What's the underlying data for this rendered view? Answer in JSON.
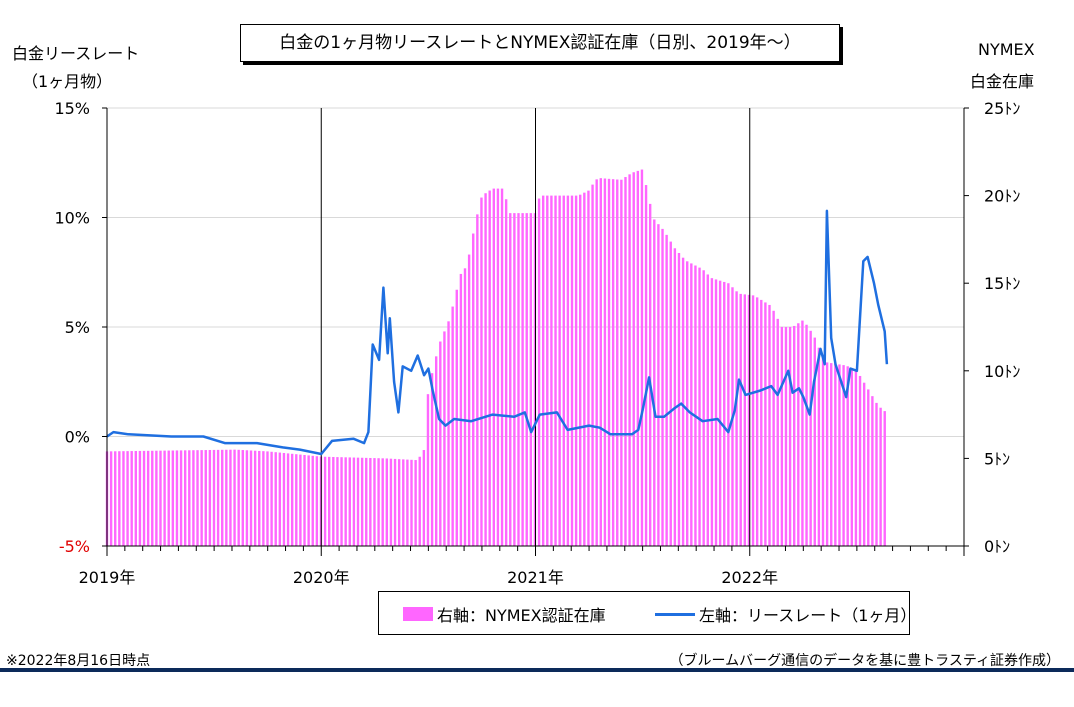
{
  "title": "白金の1ヶ月物リースレートとNYMEX認証在庫（日別、2019年～）",
  "left_axis_title": [
    "白金リースレート",
    "（1ヶ月物）"
  ],
  "right_axis_title": [
    "NYMEX",
    "白金在庫"
  ],
  "legend": {
    "bar": "右軸：NYMEX認証在庫",
    "line": "左軸：リースレート（1ヶ月）"
  },
  "footer_left": "※2022年8月16日時点",
  "footer_right": "（ブルームバーグ通信のデータを基に豊トラスティ証券作成）",
  "colors": {
    "bars": "#ff66ff",
    "line": "#1f6fe0",
    "negative_tick": "#e00000"
  },
  "chart_data": {
    "type": "bar+line",
    "x_ticks": [
      "2019年",
      "2020年",
      "2021年",
      "2022年"
    ],
    "xlim": [
      2019.0,
      2023.0
    ],
    "left_axis": {
      "ylim": [
        -5,
        15
      ],
      "ticks": [
        "-5%",
        "0%",
        "5%",
        "10%",
        "15%"
      ],
      "tick_values": [
        -5,
        0,
        5,
        10,
        15
      ]
    },
    "right_axis": {
      "ylim": [
        0,
        25
      ],
      "ticks": [
        "0ﾄﾝ",
        "5ﾄﾝ",
        "10ﾄﾝ",
        "15ﾄﾝ",
        "20ﾄﾝ",
        "25ﾄﾝ"
      ],
      "tick_values": [
        0,
        5,
        10,
        15,
        20,
        25
      ]
    },
    "grid": "horizontal",
    "series": [
      {
        "name": "右軸：NYMEX認証在庫",
        "axis": "right",
        "type": "bar",
        "points": [
          [
            2019.0,
            5.4
          ],
          [
            2019.6,
            5.5
          ],
          [
            2019.75,
            5.4
          ],
          [
            2020.0,
            5.1
          ],
          [
            2020.3,
            5.0
          ],
          [
            2020.45,
            4.9
          ],
          [
            2020.48,
            5.5
          ],
          [
            2020.5,
            9.0
          ],
          [
            2020.55,
            11.5
          ],
          [
            2020.6,
            13.0
          ],
          [
            2020.65,
            15.5
          ],
          [
            2020.68,
            16.0
          ],
          [
            2020.72,
            18.5
          ],
          [
            2020.75,
            20.0
          ],
          [
            2020.8,
            20.4
          ],
          [
            2020.85,
            20.4
          ],
          [
            2020.88,
            19.0
          ],
          [
            2021.0,
            19.0
          ],
          [
            2021.02,
            20.0
          ],
          [
            2021.1,
            20.0
          ],
          [
            2021.2,
            20.0
          ],
          [
            2021.25,
            20.3
          ],
          [
            2021.28,
            20.9
          ],
          [
            2021.3,
            21.0
          ],
          [
            2021.4,
            20.9
          ],
          [
            2021.45,
            21.3
          ],
          [
            2021.5,
            21.5
          ],
          [
            2021.55,
            18.7
          ],
          [
            2021.6,
            18.0
          ],
          [
            2021.65,
            17.0
          ],
          [
            2021.7,
            16.3
          ],
          [
            2021.78,
            15.8
          ],
          [
            2021.82,
            15.3
          ],
          [
            2021.9,
            15.0
          ],
          [
            2021.95,
            14.4
          ],
          [
            2022.02,
            14.3
          ],
          [
            2022.1,
            13.7
          ],
          [
            2022.15,
            12.5
          ],
          [
            2022.2,
            12.5
          ],
          [
            2022.25,
            12.9
          ],
          [
            2022.3,
            12.0
          ],
          [
            2022.35,
            10.5
          ],
          [
            2022.45,
            10.3
          ],
          [
            2022.5,
            10.0
          ],
          [
            2022.55,
            9.0
          ],
          [
            2022.6,
            8.0
          ],
          [
            2022.63,
            7.7
          ]
        ]
      },
      {
        "name": "左軸：リースレート（1ヶ月）",
        "axis": "left",
        "type": "line",
        "points": [
          [
            2019.0,
            0.0
          ],
          [
            2019.03,
            0.2
          ],
          [
            2019.1,
            0.1
          ],
          [
            2019.3,
            0.0
          ],
          [
            2019.45,
            0.0
          ],
          [
            2019.55,
            -0.3
          ],
          [
            2019.7,
            -0.3
          ],
          [
            2019.82,
            -0.5
          ],
          [
            2019.9,
            -0.6
          ],
          [
            2020.0,
            -0.8
          ],
          [
            2020.05,
            -0.2
          ],
          [
            2020.15,
            -0.1
          ],
          [
            2020.2,
            -0.3
          ],
          [
            2020.22,
            0.2
          ],
          [
            2020.24,
            4.2
          ],
          [
            2020.27,
            3.5
          ],
          [
            2020.29,
            6.8
          ],
          [
            2020.31,
            3.8
          ],
          [
            2020.32,
            5.4
          ],
          [
            2020.34,
            2.5
          ],
          [
            2020.36,
            1.1
          ],
          [
            2020.38,
            3.2
          ],
          [
            2020.42,
            3.0
          ],
          [
            2020.45,
            3.7
          ],
          [
            2020.48,
            2.8
          ],
          [
            2020.5,
            3.1
          ],
          [
            2020.52,
            2.1
          ],
          [
            2020.55,
            0.8
          ],
          [
            2020.58,
            0.5
          ],
          [
            2020.62,
            0.8
          ],
          [
            2020.7,
            0.7
          ],
          [
            2020.8,
            1.0
          ],
          [
            2020.9,
            0.9
          ],
          [
            2020.95,
            1.1
          ],
          [
            2020.98,
            0.2
          ],
          [
            2021.02,
            1.0
          ],
          [
            2021.1,
            1.1
          ],
          [
            2021.15,
            0.3
          ],
          [
            2021.25,
            0.5
          ],
          [
            2021.3,
            0.4
          ],
          [
            2021.35,
            0.1
          ],
          [
            2021.45,
            0.1
          ],
          [
            2021.48,
            0.3
          ],
          [
            2021.5,
            1.2
          ],
          [
            2021.53,
            2.7
          ],
          [
            2021.56,
            0.9
          ],
          [
            2021.6,
            0.9
          ],
          [
            2021.65,
            1.3
          ],
          [
            2021.68,
            1.5
          ],
          [
            2021.72,
            1.1
          ],
          [
            2021.78,
            0.7
          ],
          [
            2021.85,
            0.8
          ],
          [
            2021.9,
            0.2
          ],
          [
            2021.93,
            1.2
          ],
          [
            2021.95,
            2.6
          ],
          [
            2021.98,
            1.9
          ],
          [
            2022.05,
            2.1
          ],
          [
            2022.1,
            2.3
          ],
          [
            2022.13,
            1.9
          ],
          [
            2022.18,
            3.0
          ],
          [
            2022.2,
            2.0
          ],
          [
            2022.23,
            2.2
          ],
          [
            2022.25,
            1.8
          ],
          [
            2022.28,
            1.0
          ],
          [
            2022.3,
            2.5
          ],
          [
            2022.33,
            4.0
          ],
          [
            2022.35,
            3.3
          ],
          [
            2022.36,
            10.3
          ],
          [
            2022.38,
            4.5
          ],
          [
            2022.4,
            3.3
          ],
          [
            2022.45,
            1.8
          ],
          [
            2022.47,
            3.1
          ],
          [
            2022.5,
            3.0
          ],
          [
            2022.53,
            8.0
          ],
          [
            2022.55,
            8.2
          ],
          [
            2022.58,
            7.0
          ],
          [
            2022.6,
            6.0
          ],
          [
            2022.63,
            4.8
          ],
          [
            2022.64,
            3.3
          ]
        ]
      }
    ]
  }
}
